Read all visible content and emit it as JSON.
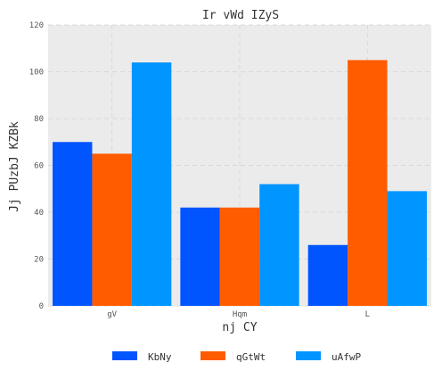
{
  "chart_data": {
    "type": "bar",
    "title": "Ir vWd  IZyS",
    "xlabel": "nj CY",
    "ylabel": "Jj PUzbJ KZBk",
    "categories": [
      "gV",
      "Hqm",
      "L"
    ],
    "series": [
      {
        "name": "KbNy",
        "color": "#0055ff",
        "values": [
          70,
          42,
          26
        ]
      },
      {
        "name": "qGtWt",
        "color": "#ff5c00",
        "values": [
          65,
          42,
          105
        ]
      },
      {
        "name": "uAfwP",
        "color": "#0095ff",
        "values": [
          104,
          52,
          49
        ]
      }
    ],
    "ylim": [
      0,
      120
    ],
    "yticks": [
      0,
      20,
      40,
      60,
      80,
      100,
      120
    ],
    "grid": true,
    "legend_position": "bottom-center"
  }
}
